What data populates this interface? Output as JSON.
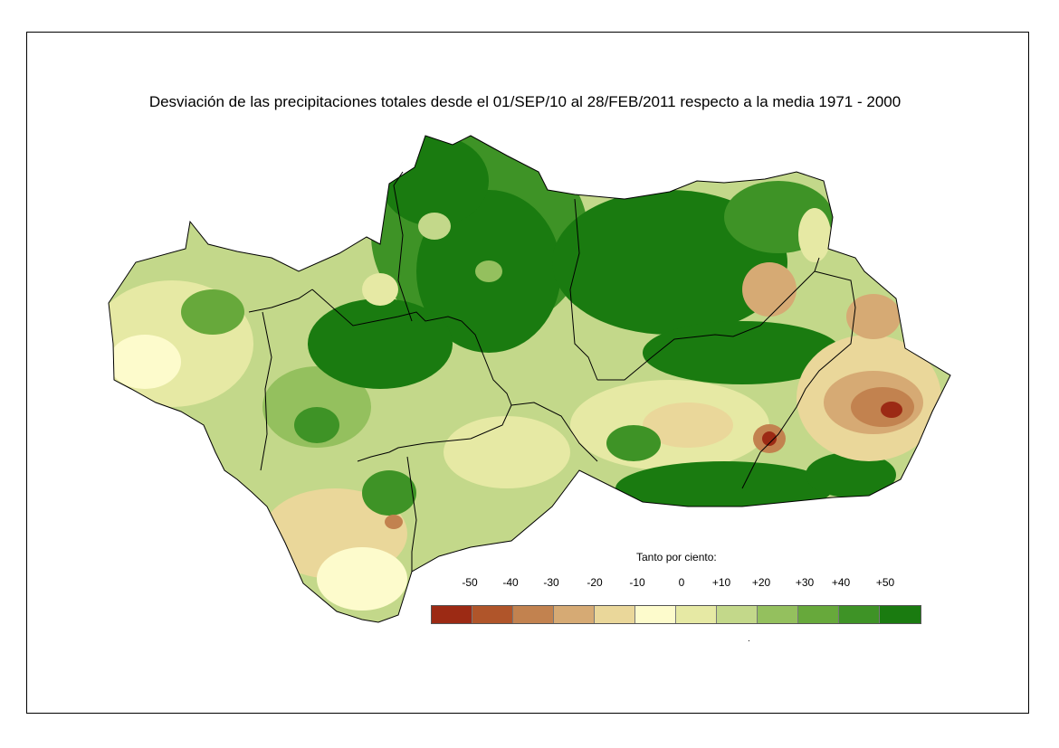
{
  "map": {
    "title": "Desviación de las precipitaciones totales desde el 01/SEP/10 al 28/FEB/2011 respecto a la media 1971 - 2000"
  },
  "legend": {
    "title": "Tanto por ciento:",
    "tick_labels": [
      "-50",
      "-40",
      "-30",
      "-20",
      "-10",
      "0",
      "+10",
      "+20",
      "+30",
      "+40",
      "+50"
    ],
    "colors": [
      "#9c2a14",
      "#b0552a",
      "#c2824f",
      "#d6aa74",
      "#ead79a",
      "#fdfbcc",
      "#e6e9a4",
      "#c3d88a",
      "#94c05e",
      "#67a93b",
      "#3e9326",
      "#1a7b10"
    ],
    "dot": "."
  }
}
